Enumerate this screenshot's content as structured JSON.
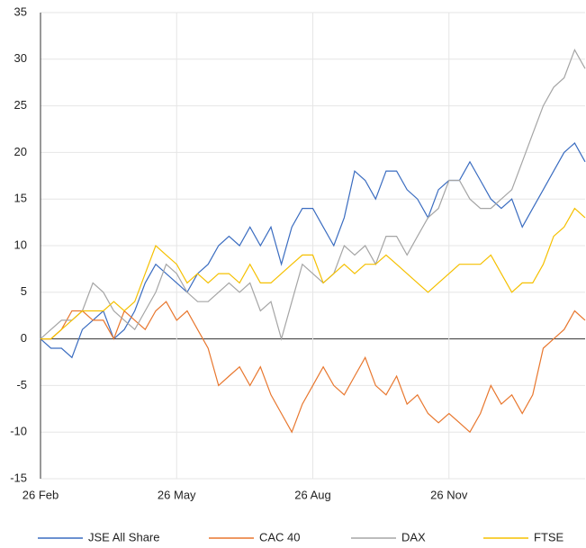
{
  "chart_data": {
    "type": "line",
    "categories": [
      "26 Feb",
      null,
      null,
      null,
      null,
      null,
      null,
      null,
      null,
      null,
      null,
      null,
      null,
      "26 May",
      null,
      null,
      null,
      null,
      null,
      null,
      null,
      null,
      null,
      null,
      null,
      null,
      "26 Aug",
      null,
      null,
      null,
      null,
      null,
      null,
      null,
      null,
      null,
      null,
      null,
      null,
      "26 Nov",
      null,
      null,
      null,
      null,
      null,
      null,
      null,
      null,
      null,
      null,
      null,
      null,
      null
    ],
    "series": [
      {
        "name": "JSE All Share",
        "color": "#3a6cc0",
        "values": [
          0,
          -1,
          -1,
          -2,
          1,
          2,
          3,
          0,
          1,
          3,
          6,
          8,
          7,
          6,
          5,
          7,
          8,
          10,
          11,
          10,
          12,
          10,
          12,
          8,
          12,
          14,
          14,
          12,
          10,
          13,
          18,
          17,
          15,
          18,
          18,
          16,
          15,
          13,
          16,
          17,
          17,
          19,
          17,
          15,
          14,
          15,
          12,
          14,
          16,
          18,
          20,
          21,
          19
        ]
      },
      {
        "name": "CAC 40",
        "color": "#e8772e",
        "values": [
          0,
          0,
          1,
          3,
          3,
          2,
          2,
          0,
          3,
          2,
          1,
          3,
          4,
          2,
          3,
          1,
          -1,
          -5,
          -4,
          -3,
          -5,
          -3,
          -6,
          -8,
          -10,
          -7,
          -5,
          -3,
          -5,
          -6,
          -4,
          -2,
          -5,
          -6,
          -4,
          -7,
          -6,
          -8,
          -9,
          -8,
          -9,
          -10,
          -8,
          -5,
          -7,
          -6,
          -8,
          -6,
          -1,
          0,
          1,
          3,
          2
        ]
      },
      {
        "name": "DAX",
        "color": "#a5a5a5",
        "values": [
          0,
          1,
          2,
          2,
          3,
          6,
          5,
          3,
          2,
          1,
          3,
          5,
          8,
          7,
          5,
          4,
          4,
          5,
          6,
          5,
          6,
          3,
          4,
          0,
          4,
          8,
          7,
          6,
          7,
          10,
          9,
          10,
          8,
          11,
          11,
          9,
          11,
          13,
          14,
          17,
          17,
          15,
          14,
          14,
          15,
          16,
          19,
          22,
          25,
          27,
          28,
          31,
          29
        ]
      },
      {
        "name": "FTSE",
        "color": "#f5c000",
        "values": [
          0,
          0,
          1,
          2,
          3,
          3,
          3,
          4,
          3,
          4,
          7,
          10,
          9,
          8,
          6,
          7,
          6,
          7,
          7,
          6,
          8,
          6,
          6,
          7,
          8,
          9,
          9,
          6,
          7,
          8,
          7,
          8,
          8,
          9,
          8,
          7,
          6,
          5,
          6,
          7,
          8,
          8,
          8,
          9,
          7,
          5,
          6,
          6,
          8,
          11,
          12,
          14,
          13
        ]
      }
    ],
    "ylim": [
      -15,
      35
    ],
    "yticks": [
      -15,
      -10,
      -5,
      0,
      5,
      10,
      15,
      20,
      25,
      30,
      35
    ],
    "grid": true
  }
}
